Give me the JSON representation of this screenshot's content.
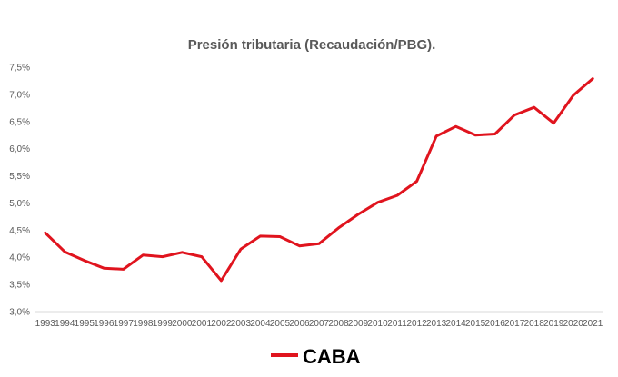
{
  "chart_data": {
    "type": "line",
    "title": "Presión tributaria (Recaudación/PBG).",
    "xlabel": "",
    "ylabel": "",
    "ylim": [
      3.0,
      7.5
    ],
    "y_ticks": [
      "3,0%",
      "3,5%",
      "4,0%",
      "4,5%",
      "5,0%",
      "5,5%",
      "6,0%",
      "6,5%",
      "7,0%",
      "7,5%"
    ],
    "categories": [
      "1993",
      "1994",
      "1995",
      "1996",
      "1997",
      "1998",
      "1999",
      "2000",
      "2001",
      "2002",
      "2003",
      "2004",
      "2005",
      "2006",
      "2007",
      "2008",
      "2009",
      "2010",
      "2011",
      "2012",
      "2013",
      "2014",
      "2015",
      "2016",
      "2017",
      "2018",
      "2019",
      "2020",
      "2021"
    ],
    "series": [
      {
        "name": "CABA",
        "color": "#e0141e",
        "values": [
          4.45,
          4.1,
          3.94,
          3.8,
          3.78,
          4.04,
          4.01,
          4.09,
          4.01,
          3.57,
          4.15,
          4.39,
          4.38,
          4.21,
          4.25,
          4.54,
          4.79,
          5.01,
          5.14,
          5.4,
          6.23,
          6.41,
          6.25,
          6.27,
          6.62,
          6.76,
          6.47,
          6.98,
          7.29
        ]
      }
    ],
    "grid": false,
    "legend": "bottom-center"
  }
}
